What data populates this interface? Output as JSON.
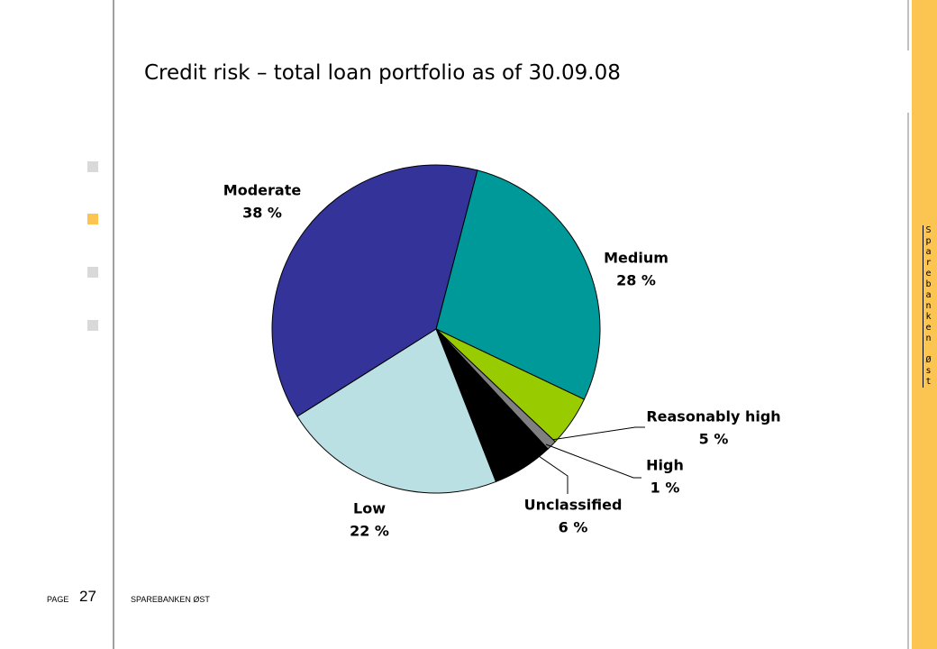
{
  "chart_data": {
    "type": "pie",
    "title": "Credit risk – total loan portfolio as of 30.09.08",
    "categories": [
      "Medium",
      "Reasonably high",
      "High",
      "Unclassified",
      "Low",
      "Moderate"
    ],
    "values": [
      28,
      5,
      1,
      6,
      22,
      38
    ],
    "value_labels": [
      "28 %",
      "5 %",
      "1 %",
      "6 %",
      "22 %",
      "38 %"
    ],
    "colors": [
      "#009999",
      "#99cc00",
      "#808080",
      "#000000",
      "#bbe0e3",
      "#333399"
    ]
  },
  "footer": {
    "page_label": "PAGE",
    "page_number": "27",
    "company": "SPAREBANKEN ØST"
  },
  "sidebar": {
    "brand": "Sparebanken Øst"
  }
}
